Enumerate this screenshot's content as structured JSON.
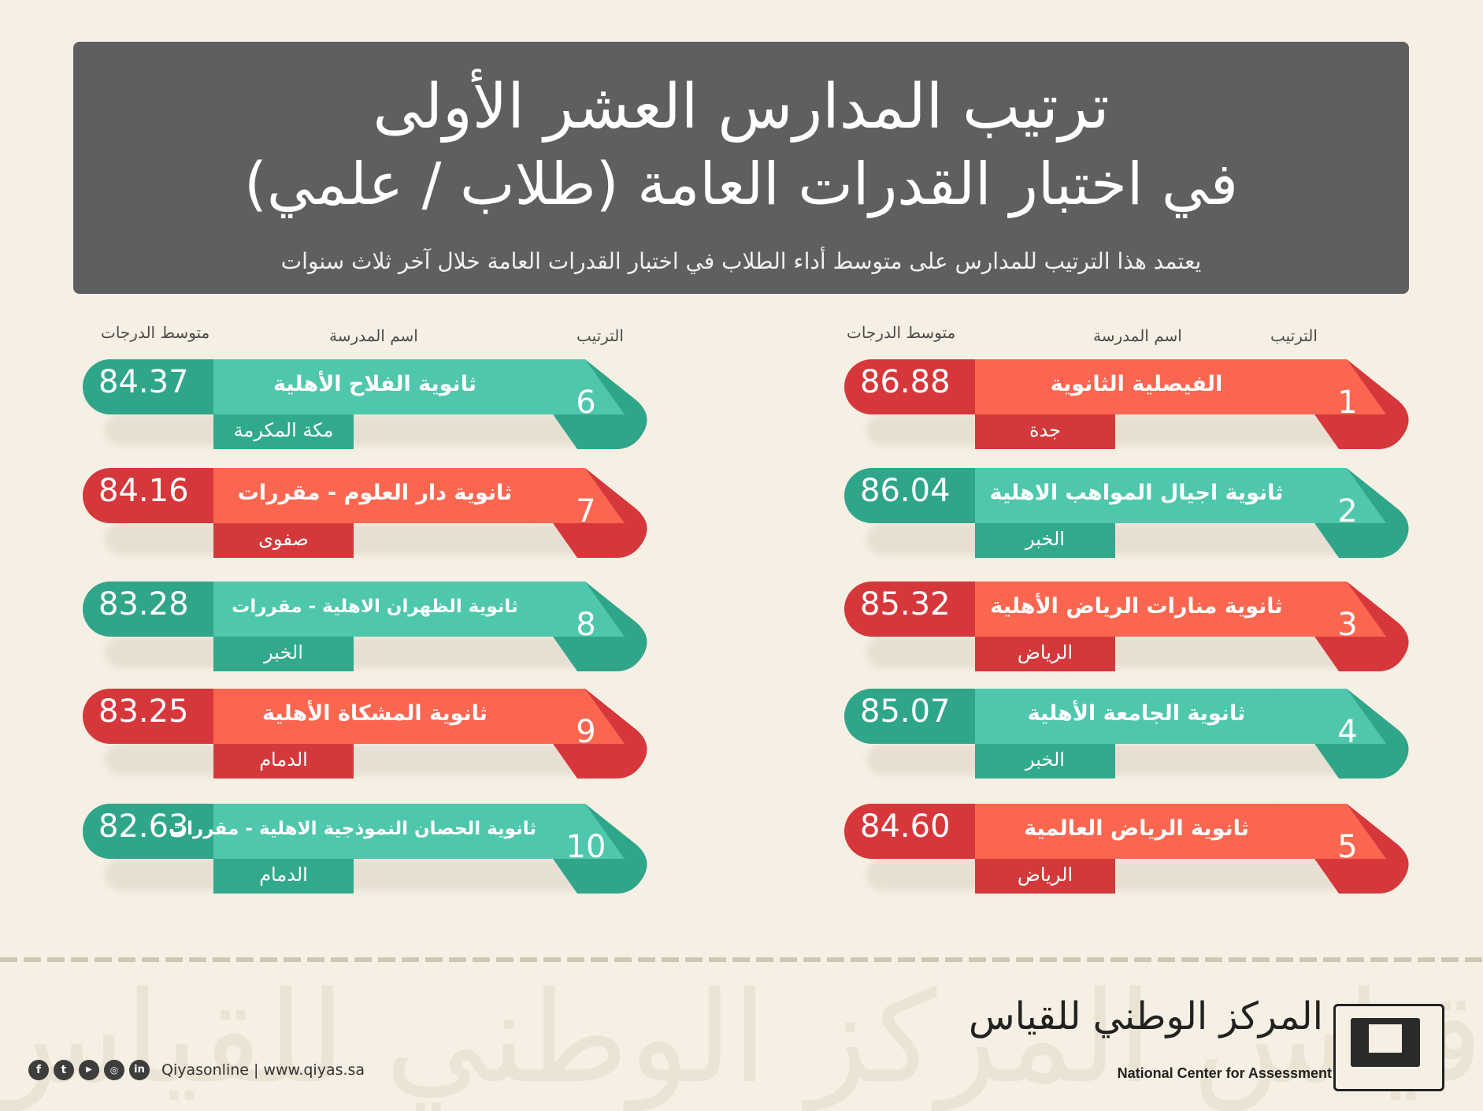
{
  "header": {
    "title_line1": "ترتيب المدارس العشر الأولى",
    "title_line2": "في اختبار القدرات العامة (طلاب / علمي)",
    "subtitle": "يعتمد هذا الترتيب للمدارس على متوسط أداء الطلاب في اختبار القدرات العامة خلال آخر ثلاث سنوات"
  },
  "columns": {
    "rank": "الترتيب",
    "school": "اسم المدرسة",
    "average": "متوسط الدرجات"
  },
  "schools": [
    {
      "rank": "1",
      "name": "الفيصلية الثانوية",
      "city": "جدة",
      "score": "86.88",
      "theme": "red"
    },
    {
      "rank": "2",
      "name": "ثانوية اجيال المواهب الاهلية",
      "city": "الخبر",
      "score": "86.04",
      "theme": "teal"
    },
    {
      "rank": "3",
      "name": "ثانوية منارات الرياض الأهلية",
      "city": "الرياض",
      "score": "85.32",
      "theme": "red"
    },
    {
      "rank": "4",
      "name": "ثانوية الجامعة الأهلية",
      "city": "الخبر",
      "score": "85.07",
      "theme": "teal"
    },
    {
      "rank": "5",
      "name": "ثانوية الرياض العالمية",
      "city": "الرياض",
      "score": "84.60",
      "theme": "red"
    },
    {
      "rank": "6",
      "name": "ثانوية الفلاح الأهلية",
      "city": "مكة المكرمة",
      "score": "84.37",
      "theme": "teal"
    },
    {
      "rank": "7",
      "name": "ثانوية دار العلوم - مقررات",
      "city": "صفوى",
      "score": "84.16",
      "theme": "red"
    },
    {
      "rank": "8",
      "name": "ثانوية الظهران الاهلية - مقررات",
      "city": "الخبر",
      "score": "83.28",
      "theme": "teal"
    },
    {
      "rank": "9",
      "name": "ثانوية المشكاة الأهلية",
      "city": "الدمام",
      "score": "83.25",
      "theme": "red"
    },
    {
      "rank": "10",
      "name": "ثانوية الحصان النموذجية الاهلية - مقررات",
      "city": "الدمام",
      "score": "82.63",
      "theme": "teal"
    }
  ],
  "colors": {
    "red_dark": "#d6373b",
    "red_light": "#fb6650",
    "teal_dark": "#2fa58a",
    "teal_light": "#4fc7ac",
    "header_bg": "#5f5f61",
    "page_bg": "#f6f0e4"
  },
  "footer": {
    "social_icons": [
      "facebook-icon",
      "twitter-icon",
      "youtube-icon",
      "instagram-icon",
      "linkedin-icon"
    ],
    "social_text": "Qiyasonline | www.qiyas.sa",
    "logo_arabic": "المركز الوطني للقياس",
    "logo_english": "National Center for Assessment"
  }
}
